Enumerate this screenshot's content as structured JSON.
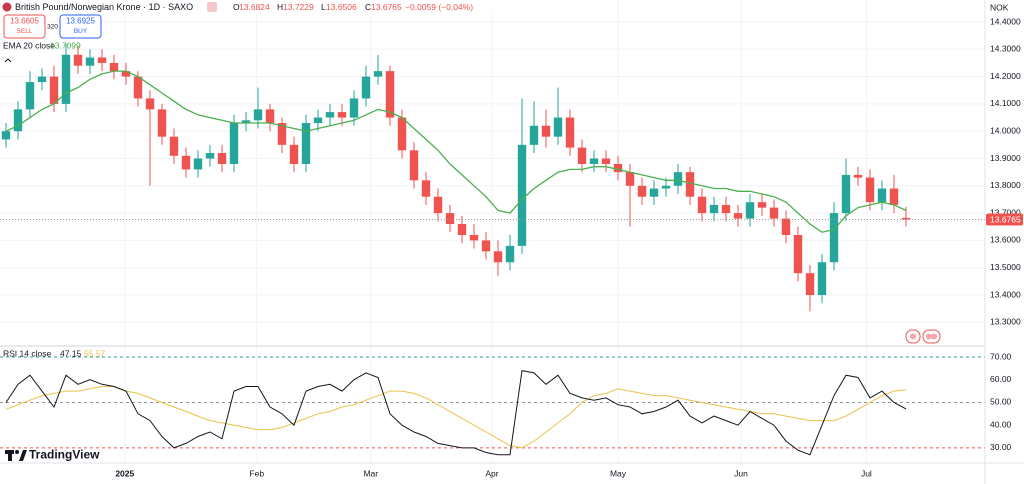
{
  "chart_data": [
    {
      "type": "candlestick",
      "title": "British Pound/Norwegian Krone · 1D · SAXO",
      "ohlc_labels": [
        "O",
        "H",
        "L",
        "C"
      ],
      "change": "−0.0059 (−0.04%)",
      "sell": {
        "price": 13.6605,
        "label": "SELL"
      },
      "buy": {
        "price": 13.6925,
        "label": "BUY"
      },
      "spread": 320,
      "currency": "NOK",
      "up_color": "#26a69a",
      "down_color": "#ef5350",
      "open": [
        13.97,
        14.0,
        14.08,
        14.18,
        14.2,
        14.1,
        14.28,
        14.24,
        14.27,
        14.25,
        14.22,
        14.2,
        14.12,
        14.08,
        13.98,
        13.91,
        13.86,
        13.9,
        13.92,
        13.88,
        14.03,
        14.04,
        14.08,
        14.03,
        13.95,
        13.88,
        14.03,
        14.05,
        14.07,
        14.05,
        14.12,
        14.2,
        14.22,
        14.05,
        13.93,
        13.82,
        13.76,
        13.7,
        13.66,
        13.62,
        13.6,
        13.56,
        13.52,
        13.58,
        13.95,
        14.02,
        13.98,
        14.05,
        13.94,
        13.88,
        13.9,
        13.88,
        13.85,
        13.8,
        13.76,
        13.79,
        13.8,
        13.85,
        13.76,
        13.7,
        13.73,
        13.7,
        13.68,
        13.74,
        13.72,
        13.68,
        13.62,
        13.48,
        13.4,
        13.52,
        13.7,
        13.84,
        13.83,
        13.74,
        13.79,
        13.6824
      ],
      "high": [
        14.03,
        14.11,
        14.22,
        14.23,
        14.24,
        14.32,
        14.31,
        14.3,
        14.3,
        14.28,
        14.25,
        14.22,
        14.15,
        14.1,
        14.01,
        13.94,
        13.93,
        13.95,
        13.95,
        14.06,
        14.07,
        14.16,
        14.1,
        14.05,
        13.98,
        14.06,
        14.08,
        14.1,
        14.1,
        14.15,
        14.24,
        14.28,
        14.24,
        14.08,
        13.96,
        13.85,
        13.79,
        13.73,
        13.69,
        13.66,
        13.63,
        13.6,
        13.62,
        14.12,
        14.11,
        14.08,
        14.16,
        14.08,
        13.97,
        13.93,
        13.93,
        13.91,
        13.88,
        13.83,
        13.82,
        13.83,
        13.88,
        13.87,
        13.79,
        13.76,
        13.76,
        13.73,
        13.77,
        13.77,
        13.75,
        13.71,
        13.65,
        13.51,
        13.55,
        13.74,
        13.9,
        13.87,
        13.86,
        13.82,
        13.84,
        13.7229
      ],
      "low": [
        13.94,
        13.97,
        14.05,
        14.15,
        14.07,
        14.07,
        14.21,
        14.21,
        14.22,
        14.19,
        14.17,
        14.09,
        13.8,
        13.95,
        13.88,
        13.83,
        13.83,
        13.87,
        13.85,
        13.85,
        14.0,
        14.01,
        14.0,
        13.92,
        13.85,
        13.85,
        14.0,
        14.02,
        14.02,
        14.02,
        14.09,
        14.17,
        14.02,
        13.9,
        13.79,
        13.73,
        13.67,
        13.63,
        13.59,
        13.57,
        13.53,
        13.47,
        13.49,
        13.55,
        13.92,
        13.94,
        13.95,
        13.91,
        13.85,
        13.85,
        13.85,
        13.82,
        13.65,
        13.73,
        13.73,
        13.76,
        13.77,
        13.73,
        13.67,
        13.67,
        13.67,
        13.65,
        13.65,
        13.69,
        13.65,
        13.59,
        13.45,
        13.34,
        13.37,
        13.49,
        13.67,
        13.8,
        13.71,
        13.71,
        13.7,
        13.6506
      ],
      "close": [
        14.0,
        14.08,
        14.18,
        14.2,
        14.1,
        14.28,
        14.24,
        14.27,
        14.25,
        14.22,
        14.2,
        14.12,
        14.08,
        13.98,
        13.91,
        13.86,
        13.9,
        13.92,
        13.88,
        14.03,
        14.04,
        14.08,
        14.03,
        13.95,
        13.88,
        14.03,
        14.05,
        14.07,
        14.05,
        14.12,
        14.2,
        14.22,
        14.05,
        13.93,
        13.82,
        13.76,
        13.7,
        13.66,
        13.62,
        13.6,
        13.56,
        13.52,
        13.58,
        13.95,
        14.02,
        13.98,
        14.05,
        13.94,
        13.88,
        13.9,
        13.88,
        13.85,
        13.8,
        13.76,
        13.79,
        13.8,
        13.85,
        13.76,
        13.7,
        13.73,
        13.7,
        13.68,
        13.74,
        13.72,
        13.68,
        13.62,
        13.48,
        13.4,
        13.52,
        13.7,
        13.84,
        13.83,
        13.74,
        13.79,
        13.73,
        13.6765
      ],
      "series": [
        {
          "name": "EMA 20 close",
          "color": "#4caf50",
          "values": [
            14.0,
            14.02,
            14.05,
            14.08,
            14.1,
            14.14,
            14.16,
            14.19,
            14.21,
            14.22,
            14.22,
            14.2,
            14.17,
            14.14,
            14.11,
            14.08,
            14.06,
            14.05,
            14.04,
            14.03,
            14.03,
            14.03,
            14.03,
            14.02,
            14.01,
            14.0,
            14.01,
            14.02,
            14.03,
            14.04,
            14.06,
            14.08,
            14.07,
            14.05,
            14.01,
            13.97,
            13.93,
            13.88,
            13.84,
            13.8,
            13.76,
            13.71,
            13.7,
            13.75,
            13.79,
            13.82,
            13.85,
            13.86,
            13.86,
            13.87,
            13.87,
            13.86,
            13.85,
            13.84,
            13.83,
            13.82,
            13.82,
            13.81,
            13.8,
            13.79,
            13.79,
            13.78,
            13.78,
            13.77,
            13.76,
            13.74,
            13.7,
            13.66,
            13.63,
            13.64,
            13.69,
            13.72,
            13.73,
            13.74,
            13.73,
            13.7099
          ]
        }
      ],
      "xlim": [
        -0.5,
        81.583
      ],
      "xticks": [
        {
          "value": 9.9,
          "label": "2025"
        },
        {
          "value": 20.9,
          "label": "Feb"
        },
        {
          "value": 30.4,
          "label": "Mar"
        },
        {
          "value": 40.5,
          "label": "Apr"
        },
        {
          "value": 51,
          "label": "May"
        },
        {
          "value": 61.25,
          "label": "Jun"
        },
        {
          "value": 71.7,
          "label": "Jul"
        }
      ],
      "ylim": [
        13.2169,
        14.4806
      ],
      "yticks": [
        {
          "value": 14.4,
          "label": "14.4000"
        },
        {
          "value": 14.3,
          "label": "14.3000"
        },
        {
          "value": 14.2,
          "label": "14.2000"
        },
        {
          "value": 14.1,
          "label": "14.1000"
        },
        {
          "value": 14.0,
          "label": "14.0000"
        },
        {
          "value": 13.9,
          "label": "13.9000"
        },
        {
          "value": 13.8,
          "label": "13.8000"
        },
        {
          "value": 13.7,
          "label": "13.7000"
        },
        {
          "value": 13.6,
          "label": "13.6000"
        },
        {
          "value": 13.5,
          "label": "13.5000"
        },
        {
          "value": 13.4,
          "label": "13.4000"
        },
        {
          "value": 13.3,
          "label": "13.3000"
        }
      ],
      "grid": true,
      "branding": "TradingView"
    },
    {
      "type": "line",
      "title": "RSI 14 close",
      "series": [
        {
          "color": "#131722",
          "values": [
            50,
            58,
            62,
            55,
            48,
            62,
            58,
            60,
            58,
            57,
            55,
            45,
            42,
            35,
            30,
            32,
            35,
            37,
            34,
            55,
            57,
            57,
            48,
            45,
            40,
            55,
            57,
            58,
            55,
            60,
            63,
            61,
            45,
            40,
            37,
            35,
            32,
            31,
            30,
            30,
            28,
            27,
            27,
            64,
            63,
            58,
            62,
            54,
            52,
            51,
            52,
            49,
            48,
            45,
            46,
            48,
            51,
            44,
            41,
            44,
            42,
            40,
            46,
            43,
            40,
            33,
            29,
            27,
            40,
            53,
            62,
            61,
            52,
            55,
            50,
            47.15
          ]
        },
        {
          "color": "#e8c34a",
          "values": [
            47,
            49,
            51,
            53,
            54,
            55,
            55,
            56,
            57,
            57,
            55,
            54,
            52,
            50,
            48,
            46,
            44,
            42,
            41,
            40,
            39,
            38,
            38,
            39,
            41,
            43,
            45,
            46,
            48,
            49,
            51,
            53,
            55,
            55,
            54,
            52,
            49,
            46,
            43,
            40,
            37,
            34,
            31,
            30,
            33,
            37,
            41,
            45,
            50,
            53,
            54,
            56,
            55,
            54,
            53,
            53,
            52,
            51,
            50,
            49,
            48,
            47,
            46,
            45,
            45,
            44,
            43,
            42,
            42,
            42,
            44,
            47,
            50,
            53,
            55,
            55.57
          ]
        }
      ],
      "ylim": [
        23.8,
        74.4
      ],
      "yticks": [
        {
          "value": 70,
          "label": "70.00"
        },
        {
          "value": 60,
          "label": "60.00"
        },
        {
          "value": 50,
          "label": "50.00"
        },
        {
          "value": 40,
          "label": "40.00"
        },
        {
          "value": 30,
          "label": "30.00"
        }
      ],
      "levels": [
        {
          "value": 70,
          "color": "#26a69a"
        },
        {
          "value": 50,
          "color": "#9598a1"
        },
        {
          "value": 30,
          "color": "#ef5350"
        }
      ]
    }
  ]
}
